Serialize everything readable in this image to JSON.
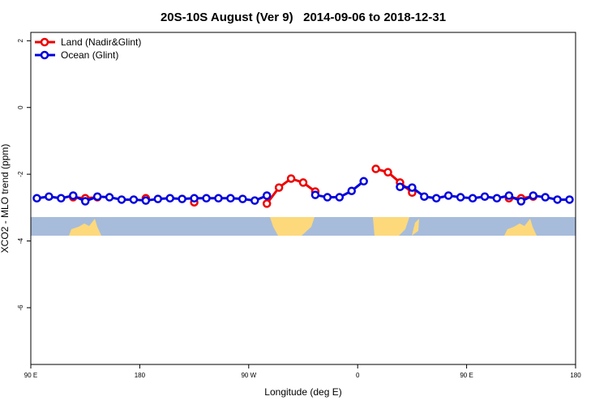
{
  "chart_data": {
    "type": "line",
    "title": "20S-10S August (Ver 9)   2014-09-06 to 2018-12-31",
    "x_label": "Longitude (deg E)",
    "y_label": "XCO2 - MLO trend (ppm)",
    "x": [
      95,
      105,
      115,
      125,
      135,
      145,
      155,
      165,
      175,
      185,
      195,
      205,
      215,
      225,
      235,
      245,
      255,
      265,
      275,
      285,
      295,
      305,
      315,
      325,
      335,
      345,
      355,
      365,
      375,
      385,
      395,
      405,
      415,
      425,
      435,
      445,
      455,
      465,
      475,
      485,
      495,
      505,
      515,
      525,
      535
    ],
    "series": [
      {
        "name": "Land (Nadir&Glint)",
        "color": "#ee0000",
        "values": [
          null,
          null,
          null,
          -2.69,
          -2.72,
          -2.69,
          null,
          null,
          null,
          -2.72,
          null,
          null,
          null,
          -2.84,
          null,
          null,
          null,
          null,
          null,
          -2.88,
          -2.4,
          -2.13,
          -2.25,
          -2.52,
          null,
          null,
          null,
          null,
          -1.84,
          -1.94,
          -2.25,
          -2.55,
          null,
          null,
          null,
          null,
          null,
          null,
          null,
          -2.72,
          -2.72,
          -2.67,
          null,
          null,
          null
        ]
      },
      {
        "name": "Ocean (Glint)",
        "color": "#0000dd",
        "values": [
          -2.72,
          -2.67,
          -2.72,
          -2.64,
          -2.81,
          -2.67,
          -2.69,
          -2.76,
          -2.76,
          -2.79,
          -2.74,
          -2.72,
          -2.74,
          -2.72,
          -2.72,
          -2.72,
          -2.72,
          -2.74,
          -2.79,
          -2.64,
          null,
          null,
          null,
          -2.62,
          -2.69,
          -2.69,
          -2.5,
          -2.21,
          null,
          null,
          -2.38,
          -2.4,
          -2.67,
          -2.72,
          -2.64,
          -2.69,
          -2.72,
          -2.67,
          -2.72,
          -2.64,
          -2.81,
          -2.64,
          -2.69,
          -2.76,
          -2.76
        ]
      }
    ],
    "xlim": [
      90,
      540
    ],
    "ylim": [
      -7.7,
      2.25
    ],
    "xticks": [
      {
        "value": 90,
        "label": "90 E"
      },
      180,
      {
        "value": 270,
        "label": "90 W"
      },
      {
        "value": 360,
        "label": "0"
      },
      {
        "value": 450,
        "label": "90 E"
      },
      {
        "value": 540,
        "label": "180"
      }
    ],
    "yticks": [
      -6,
      -4,
      -2,
      0,
      2
    ],
    "legend": "top-left"
  }
}
